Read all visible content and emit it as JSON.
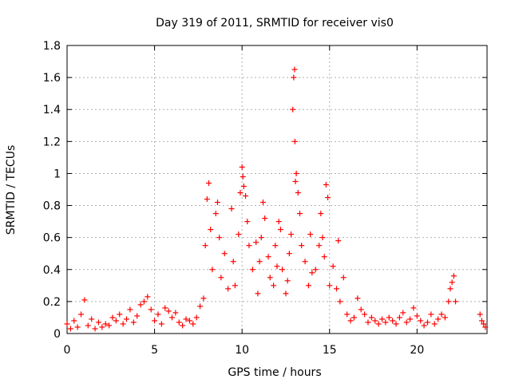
{
  "chart_data": {
    "type": "scatter",
    "title": "Day 319 of 2011, SRMTID for receiver vis0",
    "xlabel": "GPS time / hours",
    "ylabel": "SRMTID / TECUs",
    "xlim": [
      0,
      24
    ],
    "ylim": [
      0,
      1.8
    ],
    "xticks": [
      0,
      5,
      10,
      15,
      20
    ],
    "yticks": [
      0,
      0.2,
      0.4,
      0.6,
      0.8,
      1,
      1.2,
      1.4,
      1.6,
      1.8
    ],
    "xtick_labels": [
      "0",
      "5",
      "10",
      "15",
      "20"
    ],
    "ytick_labels": [
      "0",
      "0.2",
      "0.4",
      "0.6",
      "0.8",
      "1",
      "1.2",
      "1.4",
      "1.6",
      "1.8"
    ],
    "grid": true,
    "marker": "+",
    "series": [
      {
        "name": "vis0",
        "color": "#ff0000",
        "points": [
          [
            0.0,
            0.06
          ],
          [
            0.2,
            0.03
          ],
          [
            0.4,
            0.08
          ],
          [
            0.6,
            0.04
          ],
          [
            0.8,
            0.12
          ],
          [
            1.0,
            0.21
          ],
          [
            1.2,
            0.05
          ],
          [
            1.4,
            0.09
          ],
          [
            1.6,
            0.03
          ],
          [
            1.8,
            0.07
          ],
          [
            2.0,
            0.04
          ],
          [
            2.2,
            0.06
          ],
          [
            2.4,
            0.05
          ],
          [
            2.6,
            0.1
          ],
          [
            2.8,
            0.08
          ],
          [
            3.0,
            0.12
          ],
          [
            3.2,
            0.06
          ],
          [
            3.4,
            0.09
          ],
          [
            3.6,
            0.15
          ],
          [
            3.8,
            0.07
          ],
          [
            4.0,
            0.11
          ],
          [
            4.2,
            0.18
          ],
          [
            4.4,
            0.2
          ],
          [
            4.6,
            0.23
          ],
          [
            4.8,
            0.15
          ],
          [
            5.0,
            0.08
          ],
          [
            5.2,
            0.12
          ],
          [
            5.4,
            0.06
          ],
          [
            5.6,
            0.16
          ],
          [
            5.8,
            0.14
          ],
          [
            6.0,
            0.1
          ],
          [
            6.2,
            0.13
          ],
          [
            6.4,
            0.07
          ],
          [
            6.6,
            0.05
          ],
          [
            6.8,
            0.09
          ],
          [
            7.0,
            0.08
          ],
          [
            7.2,
            0.06
          ],
          [
            7.4,
            0.1
          ],
          [
            7.6,
            0.17
          ],
          [
            7.8,
            0.22
          ],
          [
            7.9,
            0.55
          ],
          [
            8.0,
            0.84
          ],
          [
            8.1,
            0.94
          ],
          [
            8.2,
            0.65
          ],
          [
            8.3,
            0.4
          ],
          [
            8.5,
            0.75
          ],
          [
            8.6,
            0.82
          ],
          [
            8.7,
            0.6
          ],
          [
            8.8,
            0.35
          ],
          [
            9.0,
            0.5
          ],
          [
            9.2,
            0.28
          ],
          [
            9.4,
            0.78
          ],
          [
            9.5,
            0.45
          ],
          [
            9.6,
            0.3
          ],
          [
            9.8,
            0.62
          ],
          [
            9.9,
            0.88
          ],
          [
            10.0,
            1.04
          ],
          [
            10.05,
            0.98
          ],
          [
            10.1,
            0.92
          ],
          [
            10.2,
            0.86
          ],
          [
            10.3,
            0.7
          ],
          [
            10.4,
            0.55
          ],
          [
            10.6,
            0.4
          ],
          [
            10.8,
            0.57
          ],
          [
            10.9,
            0.25
          ],
          [
            11.0,
            0.45
          ],
          [
            11.1,
            0.6
          ],
          [
            11.2,
            0.82
          ],
          [
            11.3,
            0.72
          ],
          [
            11.5,
            0.48
          ],
          [
            11.6,
            0.35
          ],
          [
            11.8,
            0.3
          ],
          [
            11.9,
            0.55
          ],
          [
            12.0,
            0.42
          ],
          [
            12.1,
            0.7
          ],
          [
            12.2,
            0.65
          ],
          [
            12.3,
            0.4
          ],
          [
            12.5,
            0.25
          ],
          [
            12.6,
            0.33
          ],
          [
            12.7,
            0.5
          ],
          [
            12.8,
            0.62
          ],
          [
            12.9,
            1.4
          ],
          [
            12.95,
            1.6
          ],
          [
            13.0,
            1.65
          ],
          [
            13.02,
            1.2
          ],
          [
            13.05,
            0.95
          ],
          [
            13.1,
            1.0
          ],
          [
            13.2,
            0.88
          ],
          [
            13.3,
            0.75
          ],
          [
            13.4,
            0.55
          ],
          [
            13.6,
            0.45
          ],
          [
            13.8,
            0.3
          ],
          [
            13.9,
            0.62
          ],
          [
            14.0,
            0.38
          ],
          [
            14.2,
            0.4
          ],
          [
            14.4,
            0.55
          ],
          [
            14.5,
            0.75
          ],
          [
            14.6,
            0.6
          ],
          [
            14.7,
            0.48
          ],
          [
            14.8,
            0.93
          ],
          [
            14.9,
            0.85
          ],
          [
            15.0,
            0.3
          ],
          [
            15.2,
            0.42
          ],
          [
            15.4,
            0.28
          ],
          [
            15.5,
            0.58
          ],
          [
            15.6,
            0.2
          ],
          [
            15.8,
            0.35
          ],
          [
            16.0,
            0.12
          ],
          [
            16.2,
            0.08
          ],
          [
            16.4,
            0.1
          ],
          [
            16.6,
            0.22
          ],
          [
            16.8,
            0.15
          ],
          [
            17.0,
            0.12
          ],
          [
            17.2,
            0.07
          ],
          [
            17.4,
            0.1
          ],
          [
            17.6,
            0.08
          ],
          [
            17.8,
            0.06
          ],
          [
            18.0,
            0.09
          ],
          [
            18.2,
            0.07
          ],
          [
            18.4,
            0.1
          ],
          [
            18.6,
            0.08
          ],
          [
            18.8,
            0.06
          ],
          [
            19.0,
            0.1
          ],
          [
            19.2,
            0.13
          ],
          [
            19.4,
            0.07
          ],
          [
            19.6,
            0.09
          ],
          [
            19.8,
            0.16
          ],
          [
            20.0,
            0.11
          ],
          [
            20.2,
            0.08
          ],
          [
            20.4,
            0.05
          ],
          [
            20.6,
            0.07
          ],
          [
            20.8,
            0.12
          ],
          [
            21.0,
            0.06
          ],
          [
            21.2,
            0.09
          ],
          [
            21.4,
            0.12
          ],
          [
            21.6,
            0.1
          ],
          [
            21.8,
            0.2
          ],
          [
            21.9,
            0.28
          ],
          [
            22.0,
            0.32
          ],
          [
            22.1,
            0.36
          ],
          [
            22.2,
            0.2
          ],
          [
            23.6,
            0.12
          ],
          [
            23.7,
            0.08
          ],
          [
            23.8,
            0.06
          ],
          [
            23.9,
            0.04
          ]
        ]
      }
    ]
  }
}
